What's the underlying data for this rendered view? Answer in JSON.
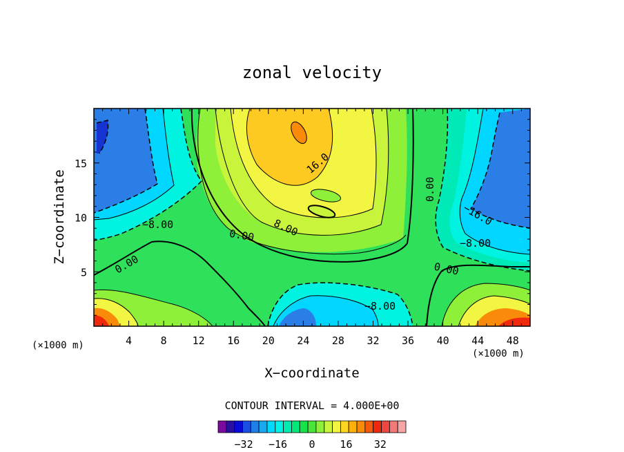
{
  "chart_data": {
    "type": "contour",
    "title": "zonal velocity",
    "xlabel": "X−coordinate",
    "ylabel": "Z−coordinate",
    "x_unit": "(×1000 m)",
    "z_unit": "(×1000 m)",
    "xlim": [
      0,
      50
    ],
    "ylim": [
      0,
      20
    ],
    "x_ticks": [
      "4",
      "8",
      "12",
      "16",
      "20",
      "24",
      "28",
      "32",
      "36",
      "40",
      "44",
      "48"
    ],
    "y_ticks": [
      "5",
      "10",
      "15"
    ],
    "contour_interval_label": "CONTOUR INTERVAL = 4.000E+00",
    "colorbar_ticks": [
      "−32",
      "−16",
      "0",
      "16",
      "32"
    ],
    "colorbar_colors": [
      "#7b0a9e",
      "#2b0fa0",
      "#0a0ad6",
      "#1a4fe6",
      "#1e7fe8",
      "#17a9f0",
      "#00d8ff",
      "#00f3e6",
      "#00ecb0",
      "#00e97a",
      "#16e34a",
      "#4ae53c",
      "#8ff03a",
      "#c8f53c",
      "#f2f542",
      "#fdd523",
      "#fdb10a",
      "#fa8a0a",
      "#f55a0a",
      "#f0280c",
      "#ed4840",
      "#f07a7a",
      "#f7a6a6"
    ],
    "contour_labels": [
      {
        "text": "16.0"
      },
      {
        "text": "0.00"
      },
      {
        "text": "8.00"
      },
      {
        "text": "0.00"
      },
      {
        "text": "−8.00"
      },
      {
        "text": "0.00"
      },
      {
        "text": "−16.0"
      },
      {
        "text": "−8.00"
      },
      {
        "text": "0.00"
      },
      {
        "text": "−8.00"
      }
    ]
  }
}
